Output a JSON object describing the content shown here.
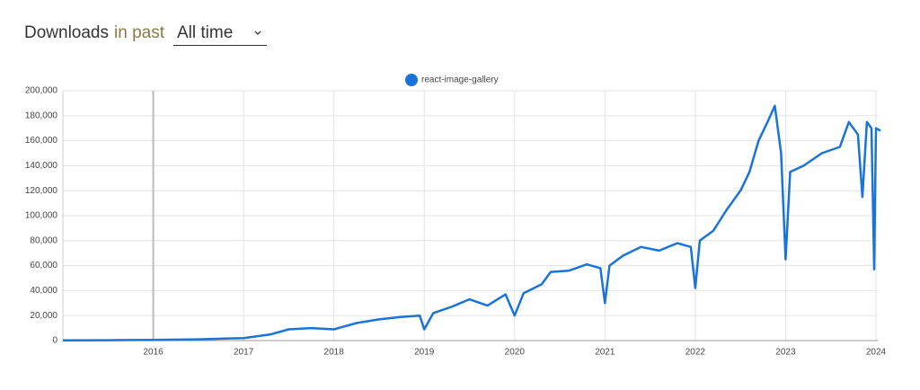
{
  "header": {
    "title": "Downloads",
    "connector": "in past",
    "range": "All time"
  },
  "chart_data": {
    "type": "line",
    "x": [
      2015.0,
      2015.5,
      2016.0,
      2016.5,
      2017.0,
      2017.3,
      2017.5,
      2017.75,
      2018.0,
      2018.25,
      2018.5,
      2018.75,
      2018.95,
      2019.0,
      2019.1,
      2019.3,
      2019.5,
      2019.7,
      2019.9,
      2020.0,
      2020.1,
      2020.3,
      2020.4,
      2020.6,
      2020.8,
      2020.95,
      2021.0,
      2021.05,
      2021.2,
      2021.4,
      2021.6,
      2021.8,
      2021.95,
      2022.0,
      2022.05,
      2022.2,
      2022.35,
      2022.5,
      2022.6,
      2022.7,
      2022.8,
      2022.88,
      2022.95,
      2023.0,
      2023.05,
      2023.2,
      2023.4,
      2023.6,
      2023.7,
      2023.8,
      2023.85,
      2023.9,
      2023.95,
      2023.98,
      2024.0,
      2024.05
    ],
    "series": [
      {
        "name": "react-image-gallery",
        "color": "#1a73d9",
        "values": [
          200,
          300,
          500,
          1000,
          2000,
          5000,
          9000,
          10000,
          9000,
          14000,
          17000,
          19000,
          20000,
          9000,
          22000,
          27000,
          33000,
          28000,
          37000,
          20000,
          38000,
          45000,
          55000,
          56000,
          61000,
          58000,
          30000,
          60000,
          68000,
          75000,
          72000,
          78000,
          75000,
          42000,
          80000,
          88000,
          105000,
          120000,
          135000,
          160000,
          175000,
          188000,
          150000,
          65000,
          135000,
          140000,
          150000,
          155000,
          175000,
          165000,
          115000,
          175000,
          170000,
          57000,
          170000,
          168000
        ]
      }
    ],
    "xlim": [
      2015.0,
      2024.02
    ],
    "xticks": [
      2016,
      2017,
      2018,
      2019,
      2020,
      2021,
      2022,
      2023,
      2024
    ],
    "ylim": [
      0,
      200000
    ],
    "yticks": [
      0,
      {
        "value": 20000,
        "label": "20,000"
      },
      {
        "value": 40000,
        "label": "40,000"
      },
      {
        "value": 60000,
        "label": "60,000"
      },
      {
        "value": 80000,
        "label": "80,000"
      },
      {
        "value": 100000,
        "label": "100,000"
      },
      {
        "value": 120000,
        "label": "120,000"
      },
      {
        "value": 140000,
        "label": "140,000"
      },
      {
        "value": 160000,
        "label": "160,000"
      },
      {
        "value": 180000,
        "label": "180,000"
      },
      {
        "value": 200000,
        "label": "200,000"
      }
    ],
    "grid": true,
    "legend": "top"
  }
}
